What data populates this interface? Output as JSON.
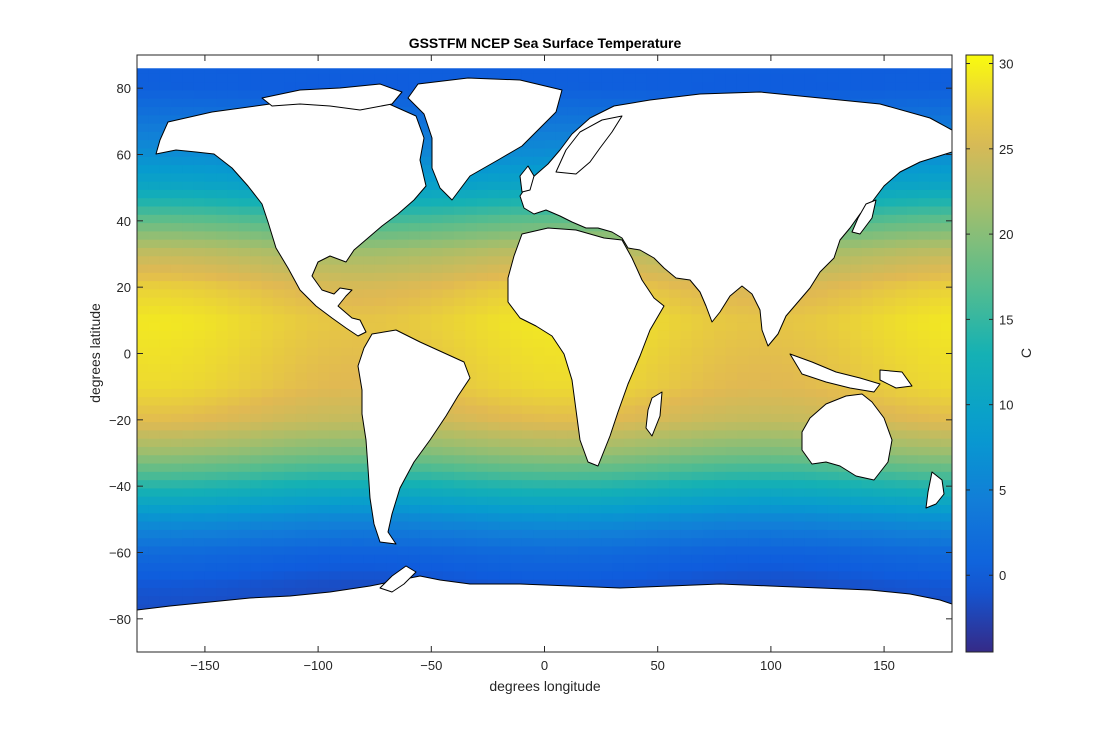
{
  "chart_data": {
    "type": "heatmap",
    "title": "GSSTFM NCEP Sea Surface Temperature",
    "xlabel": "degrees longitude",
    "ylabel": "degrees latitude",
    "xlim": [
      -180,
      180
    ],
    "ylim": [
      -90,
      90
    ],
    "xticks": [
      -150,
      -100,
      -50,
      0,
      50,
      100,
      150
    ],
    "yticks": [
      -80,
      -60,
      -40,
      -20,
      0,
      20,
      40,
      60,
      80
    ],
    "colorbar": {
      "label": "C",
      "range": [
        -4.5,
        30.5
      ],
      "ticks": [
        0,
        5,
        10,
        15,
        20,
        25,
        30
      ],
      "colormap": "parula"
    },
    "land_color": "#ffffff",
    "coastline_color": "#000000",
    "sst_profile": {
      "latitudes": [
        -78,
        -70,
        -60,
        -50,
        -40,
        -30,
        -20,
        -10,
        0,
        10,
        20,
        30,
        40,
        50,
        60,
        70,
        80
      ],
      "values": [
        -1.8,
        -1.2,
        1,
        6,
        13,
        20,
        25,
        27,
        27.5,
        28,
        26.5,
        23,
        17,
        10,
        6,
        3,
        0
      ]
    }
  }
}
